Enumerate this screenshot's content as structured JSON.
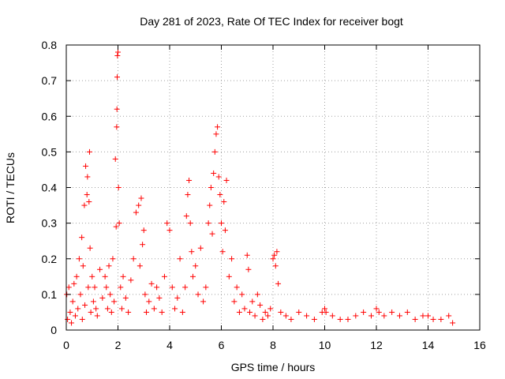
{
  "chart_data": {
    "type": "scatter",
    "title": "Day 281 of 2023, Rate Of TEC Index for receiver bogt",
    "xlabel": "GPS time / hours",
    "ylabel": "ROTI / TECUs",
    "xlim": [
      0,
      16
    ],
    "ylim": [
      0,
      0.8
    ],
    "xticks": [
      0,
      2,
      4,
      6,
      8,
      10,
      12,
      14,
      16
    ],
    "yticks": [
      0,
      0.1,
      0.2,
      0.3,
      0.4,
      0.5,
      0.6,
      0.7,
      0.8
    ],
    "ytick_labels": [
      "0",
      "0.1",
      "0.2",
      "0.3",
      "0.4",
      "0.5",
      "0.6",
      "0.7",
      "0.8"
    ],
    "grid": true,
    "marker": "+",
    "color": "#ff0000",
    "series": [
      {
        "name": "ROTI",
        "x": [
          0.02,
          0.05,
          0.1,
          0.15,
          0.2,
          0.25,
          0.3,
          0.35,
          0.4,
          0.45,
          0.5,
          0.55,
          0.6,
          0.62,
          0.65,
          0.7,
          0.72,
          0.75,
          0.8,
          0.82,
          0.85,
          0.88,
          0.9,
          0.92,
          0.95,
          1.0,
          1.05,
          1.1,
          1.15,
          1.2,
          1.3,
          1.4,
          1.5,
          1.55,
          1.6,
          1.65,
          1.7,
          1.75,
          1.8,
          1.85,
          1.9,
          1.93,
          1.95,
          1.96,
          1.97,
          1.98,
          2.0,
          2.02,
          2.05,
          2.1,
          2.15,
          2.2,
          2.3,
          2.4,
          2.5,
          2.6,
          2.7,
          2.8,
          2.85,
          2.9,
          2.95,
          3.0,
          3.05,
          3.1,
          3.2,
          3.3,
          3.4,
          3.5,
          3.6,
          3.7,
          3.8,
          3.9,
          4.0,
          4.1,
          4.2,
          4.3,
          4.4,
          4.5,
          4.6,
          4.65,
          4.7,
          4.75,
          4.8,
          4.85,
          4.9,
          5.0,
          5.1,
          5.2,
          5.3,
          5.4,
          5.5,
          5.55,
          5.6,
          5.65,
          5.7,
          5.75,
          5.8,
          5.85,
          5.9,
          5.95,
          6.0,
          6.05,
          6.1,
          6.15,
          6.2,
          6.3,
          6.4,
          6.5,
          6.6,
          6.7,
          6.8,
          6.9,
          7.0,
          7.05,
          7.1,
          7.2,
          7.3,
          7.4,
          7.5,
          7.6,
          7.7,
          7.8,
          7.9,
          8.0,
          8.05,
          8.1,
          8.15,
          8.2,
          8.3,
          8.5,
          8.7,
          9.0,
          9.3,
          9.6,
          9.9,
          10.0,
          10.05,
          10.3,
          10.6,
          10.9,
          11.2,
          11.5,
          11.8,
          12.0,
          12.1,
          12.3,
          12.6,
          12.9,
          13.2,
          13.5,
          13.8,
          14.0,
          14.2,
          14.5,
          14.8,
          14.95
        ],
        "y": [
          0.1,
          0.03,
          0.12,
          0.05,
          0.02,
          0.08,
          0.13,
          0.04,
          0.15,
          0.06,
          0.2,
          0.1,
          0.26,
          0.03,
          0.18,
          0.35,
          0.07,
          0.46,
          0.38,
          0.43,
          0.12,
          0.36,
          0.5,
          0.23,
          0.05,
          0.15,
          0.08,
          0.12,
          0.06,
          0.04,
          0.17,
          0.09,
          0.15,
          0.12,
          0.06,
          0.18,
          0.1,
          0.05,
          0.2,
          0.08,
          0.48,
          0.29,
          0.57,
          0.62,
          0.71,
          0.77,
          0.78,
          0.4,
          0.3,
          0.12,
          0.06,
          0.15,
          0.09,
          0.05,
          0.14,
          0.2,
          0.33,
          0.35,
          0.18,
          0.37,
          0.24,
          0.28,
          0.1,
          0.05,
          0.08,
          0.13,
          0.06,
          0.12,
          0.09,
          0.05,
          0.15,
          0.3,
          0.28,
          0.12,
          0.06,
          0.09,
          0.2,
          0.05,
          0.12,
          0.32,
          0.38,
          0.42,
          0.3,
          0.22,
          0.15,
          0.18,
          0.1,
          0.23,
          0.08,
          0.12,
          0.3,
          0.35,
          0.4,
          0.27,
          0.44,
          0.5,
          0.55,
          0.57,
          0.43,
          0.38,
          0.3,
          0.22,
          0.36,
          0.28,
          0.42,
          0.15,
          0.2,
          0.08,
          0.12,
          0.05,
          0.1,
          0.06,
          0.21,
          0.17,
          0.05,
          0.08,
          0.04,
          0.1,
          0.07,
          0.03,
          0.05,
          0.04,
          0.06,
          0.2,
          0.21,
          0.18,
          0.22,
          0.13,
          0.05,
          0.04,
          0.03,
          0.05,
          0.04,
          0.03,
          0.05,
          0.06,
          0.05,
          0.04,
          0.03,
          0.03,
          0.04,
          0.05,
          0.04,
          0.06,
          0.05,
          0.04,
          0.05,
          0.04,
          0.05,
          0.03,
          0.04,
          0.04,
          0.03,
          0.03,
          0.04,
          0.02
        ]
      }
    ]
  }
}
